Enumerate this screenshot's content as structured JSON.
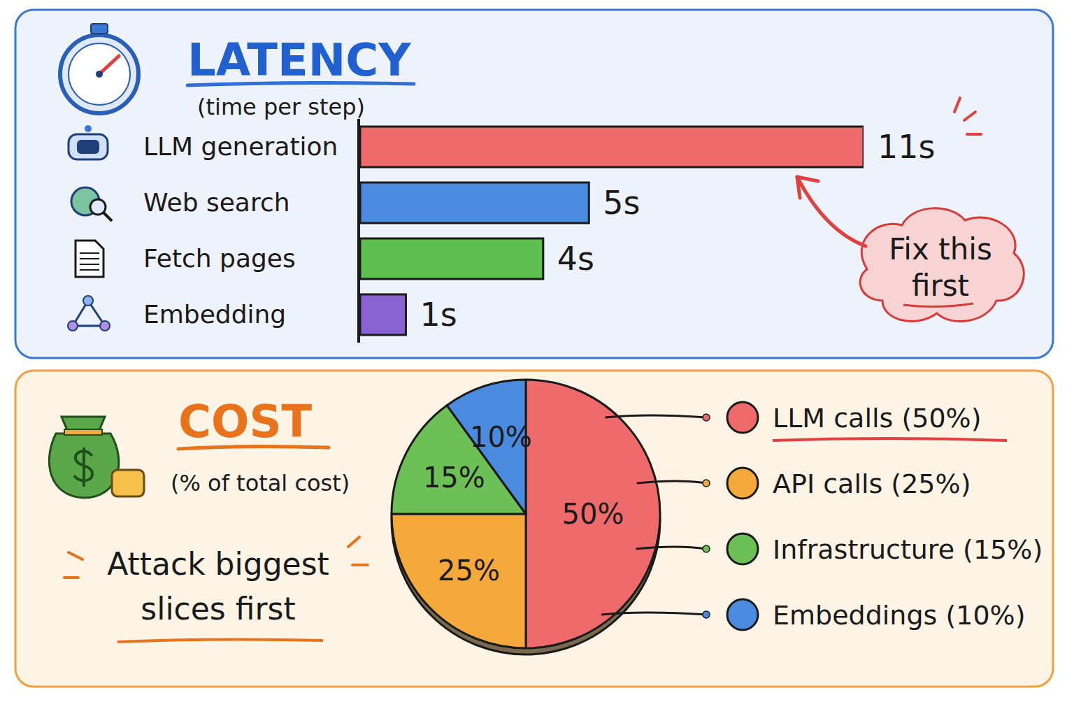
{
  "chart_data": [
    {
      "type": "bar",
      "orientation": "horizontal",
      "title": "LATENCY",
      "subtitle": "(time per step)",
      "categories": [
        "LLM generation",
        "Web search",
        "Fetch pages",
        "Embedding"
      ],
      "values": [
        11,
        5,
        4,
        1
      ],
      "value_labels": [
        "11s",
        "5s",
        "4s",
        "1s"
      ],
      "colors": [
        "#ef6b6b",
        "#4a8be0",
        "#5cbf4e",
        "#8a63d2"
      ],
      "xlim": [
        0,
        11
      ],
      "data_labels": true,
      "tick_labels": "y",
      "annotation": "Fix this first"
    },
    {
      "type": "pie",
      "title": "COST",
      "subtitle": "(% of total cost)",
      "categories": [
        "LLM calls (50%)",
        "API calls (25%)",
        "Infrastructure (15%)",
        "Embeddings (10%)"
      ],
      "values": [
        50,
        25,
        15,
        10
      ],
      "value_labels": [
        "50%",
        "25%",
        "15%",
        "10%"
      ],
      "colors": [
        "#ef6b6b",
        "#f4a93a",
        "#6cc055",
        "#4a8be0"
      ],
      "data_labels": true,
      "legend": "right",
      "annotation": "Attack biggest slices first"
    }
  ]
}
